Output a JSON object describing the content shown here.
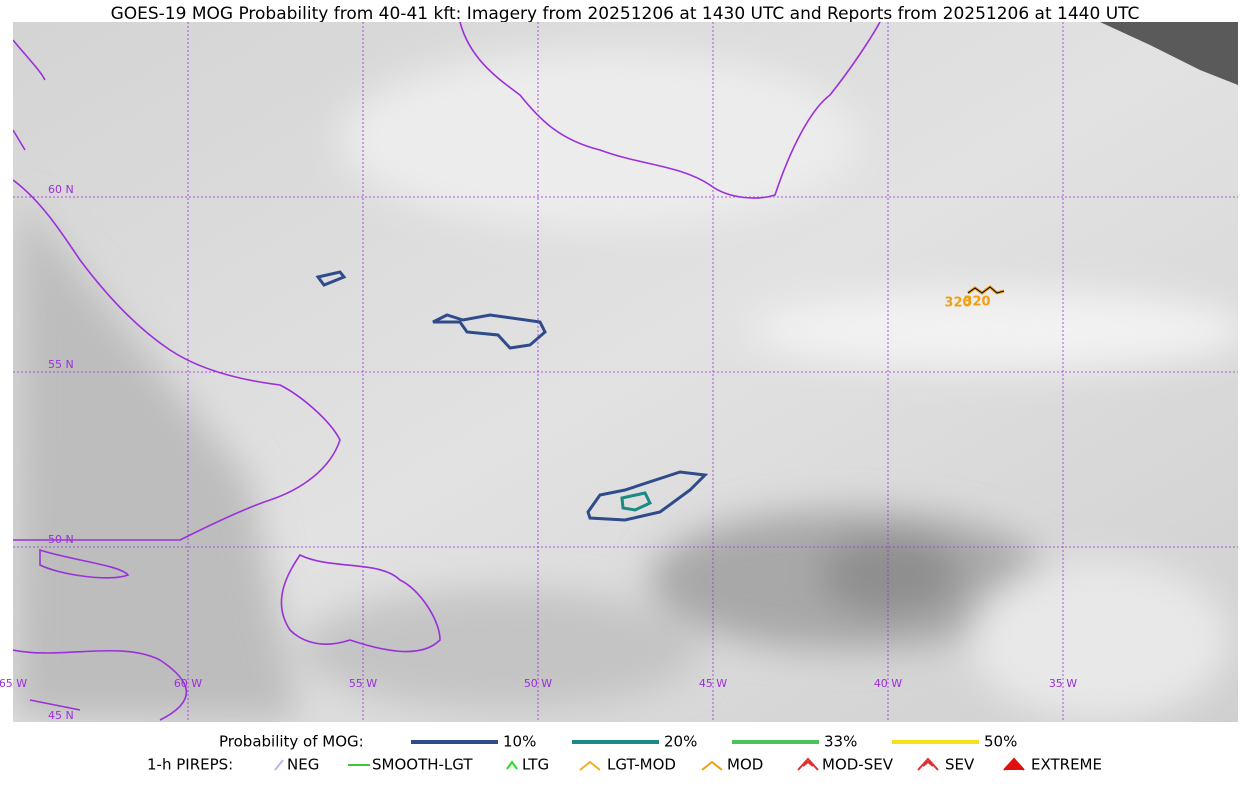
{
  "title": "GOES-19 MOG Probability from 40-41 kft: Imagery from 20251206 at 1430 UTC and Reports from 20251206 at 1440 UTC",
  "latitude_labels": [
    "60 N",
    "55 N",
    "50 N",
    "45 N"
  ],
  "longitude_labels": [
    "65 W",
    "60 W",
    "55 W",
    "50 W",
    "45 W",
    "40 W",
    "35 W"
  ],
  "reports": [
    {
      "label": "320"
    },
    {
      "label": "320"
    }
  ],
  "legend": {
    "probability_label": "Probability of MOG:",
    "probability_levels": [
      {
        "label": "10%",
        "color": "#2f4b8c"
      },
      {
        "label": "20%",
        "color": "#1a8a84"
      },
      {
        "label": "33%",
        "color": "#4cc25a"
      },
      {
        "label": "50%",
        "color": "#f5e11a"
      }
    ],
    "pireps_label": "1-h PIREPS:",
    "pirep_types": [
      {
        "label": "NEG",
        "color": "#b7b7f0"
      },
      {
        "label": "SMOOTH-LGT",
        "color": "#33cc33"
      },
      {
        "label": "LTG",
        "color": "#22dd22"
      },
      {
        "label": "LGT-MOD",
        "color": "#f0b020"
      },
      {
        "label": "MOD",
        "color": "#f0a010"
      },
      {
        "label": "MOD-SEV",
        "color": "#e03030"
      },
      {
        "label": "SEV",
        "color": "#e03030"
      },
      {
        "label": "EXTREME",
        "color": "#e01010"
      }
    ]
  }
}
